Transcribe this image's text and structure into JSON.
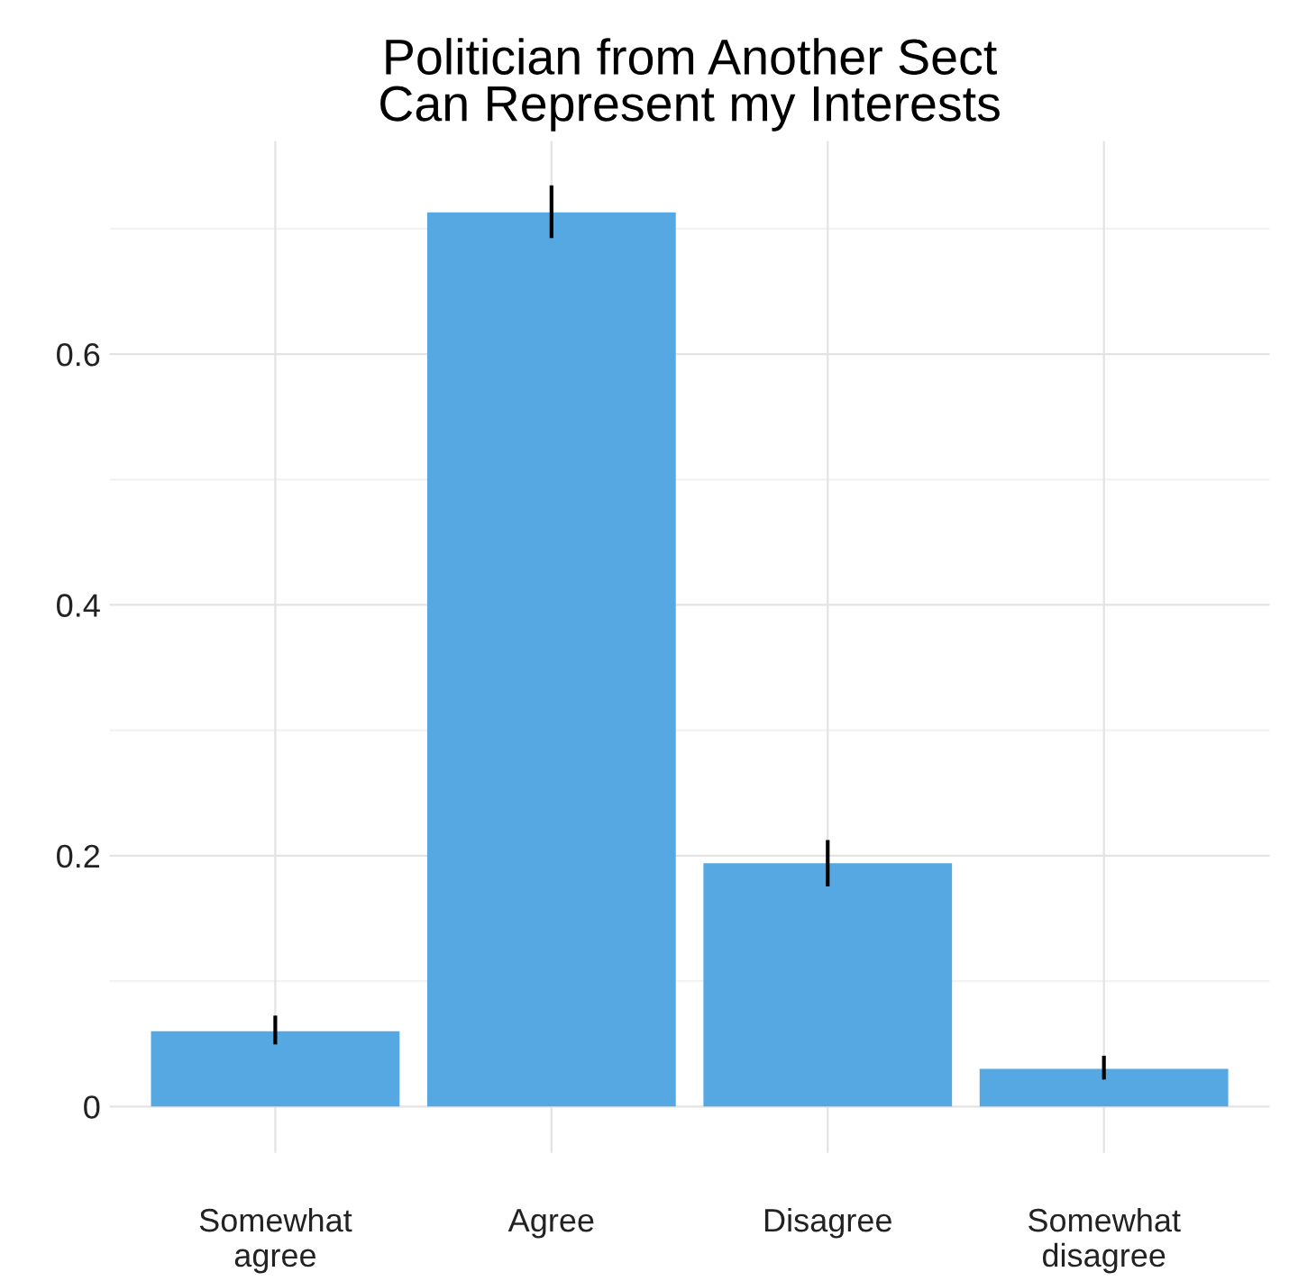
{
  "chart_data": {
    "type": "bar",
    "title": "Politician from Another Sect\nCan Represent my Interests",
    "categories": [
      "Somewhat\nagree",
      "Agree",
      "Disagree",
      "Somewhat\ndisagree"
    ],
    "values": [
      0.06,
      0.713,
      0.194,
      0.03
    ],
    "errors": [
      [
        0.051,
        0.071
      ],
      [
        0.694,
        0.733
      ],
      [
        0.177,
        0.211
      ],
      [
        0.023,
        0.039
      ]
    ],
    "color": "#56a8e3",
    "ylim": [
      -0.037,
      0.77
    ],
    "yticks": [
      0,
      {
        "value": 0.1,
        "label": null
      },
      0.2,
      {
        "value": 0.3,
        "label": null
      },
      0.4,
      {
        "value": 0.5,
        "label": null
      },
      0.6,
      {
        "value": 0.7,
        "label": null
      }
    ],
    "grid": true
  }
}
